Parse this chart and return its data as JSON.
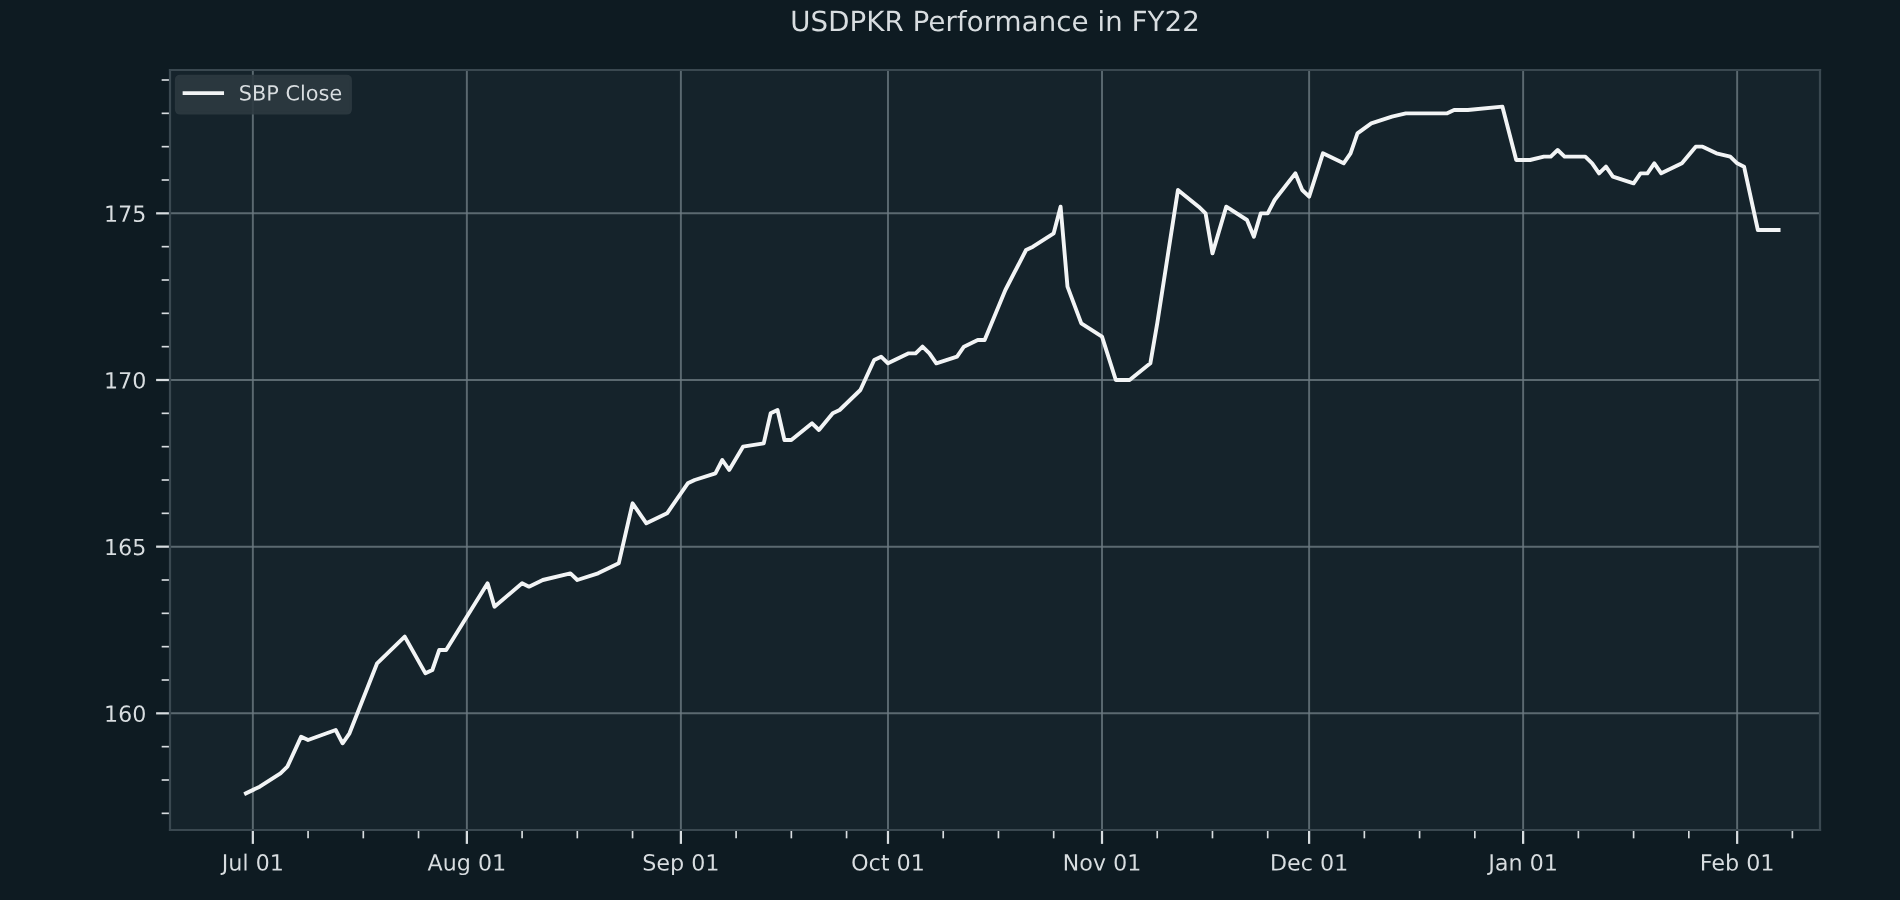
{
  "chart_data": {
    "type": "line",
    "title": "USDPKR Performance in FY22",
    "x": [
      "2021-06-30",
      "2021-07-02",
      "2021-07-05",
      "2021-07-06",
      "2021-07-08",
      "2021-07-09",
      "2021-07-13",
      "2021-07-14",
      "2021-07-15",
      "2021-07-19",
      "2021-07-23",
      "2021-07-26",
      "2021-07-27",
      "2021-07-28",
      "2021-07-29",
      "2021-08-04",
      "2021-08-05",
      "2021-08-09",
      "2021-08-10",
      "2021-08-12",
      "2021-08-16",
      "2021-08-17",
      "2021-08-20",
      "2021-08-23",
      "2021-08-25",
      "2021-08-27",
      "2021-08-30",
      "2021-09-02",
      "2021-09-03",
      "2021-09-06",
      "2021-09-07",
      "2021-09-08",
      "2021-09-10",
      "2021-09-13",
      "2021-09-14",
      "2021-09-15",
      "2021-09-16",
      "2021-09-17",
      "2021-09-20",
      "2021-09-21",
      "2021-09-23",
      "2021-09-24",
      "2021-09-27",
      "2021-09-29",
      "2021-09-30",
      "2021-10-01",
      "2021-10-04",
      "2021-10-05",
      "2021-10-06",
      "2021-10-07",
      "2021-10-08",
      "2021-10-11",
      "2021-10-12",
      "2021-10-14",
      "2021-10-15",
      "2021-10-18",
      "2021-10-21",
      "2021-10-22",
      "2021-10-25",
      "2021-10-26",
      "2021-10-27",
      "2021-10-29",
      "2021-11-01",
      "2021-11-03",
      "2021-11-05",
      "2021-11-08",
      "2021-11-09",
      "2021-11-12",
      "2021-11-15",
      "2021-11-16",
      "2021-11-17",
      "2021-11-19",
      "2021-11-22",
      "2021-11-23",
      "2021-11-24",
      "2021-11-25",
      "2021-11-26",
      "2021-11-29",
      "2021-11-30",
      "2021-12-01",
      "2021-12-03",
      "2021-12-06",
      "2021-12-07",
      "2021-12-08",
      "2021-12-10",
      "2021-12-13",
      "2021-12-15",
      "2021-12-17",
      "2021-12-21",
      "2021-12-22",
      "2021-12-24",
      "2021-12-29",
      "2021-12-31",
      "2022-01-02",
      "2022-01-04",
      "2022-01-05",
      "2022-01-06",
      "2022-01-07",
      "2022-01-10",
      "2022-01-11",
      "2022-01-12",
      "2022-01-13",
      "2022-01-14",
      "2022-01-17",
      "2022-01-18",
      "2022-01-19",
      "2022-01-20",
      "2022-01-21",
      "2022-01-24",
      "2022-01-26",
      "2022-01-27",
      "2022-01-29",
      "2022-01-31",
      "2022-02-01",
      "2022-02-02",
      "2022-02-04",
      "2022-02-07"
    ],
    "series": [
      {
        "name": "SBP Close",
        "color": "#f2f4f5",
        "values": [
          157.6,
          157.8,
          158.2,
          158.4,
          159.3,
          159.2,
          159.5,
          159.1,
          159.4,
          161.5,
          162.3,
          161.2,
          161.3,
          161.9,
          161.9,
          163.9,
          163.2,
          163.9,
          163.8,
          164.0,
          164.2,
          164.0,
          164.2,
          164.5,
          166.3,
          165.7,
          166.0,
          166.9,
          167.0,
          167.2,
          167.6,
          167.3,
          168.0,
          168.1,
          169.0,
          169.1,
          168.2,
          168.2,
          168.7,
          168.5,
          169.0,
          169.1,
          169.7,
          170.6,
          170.7,
          170.5,
          170.8,
          170.8,
          171.0,
          170.8,
          170.5,
          170.7,
          171.0,
          171.2,
          171.2,
          172.7,
          173.9,
          174.0,
          174.4,
          175.2,
          172.8,
          171.7,
          171.3,
          170.0,
          170.0,
          170.5,
          171.7,
          175.7,
          175.2,
          175.0,
          173.8,
          175.2,
          174.8,
          174.3,
          175.0,
          175.0,
          175.4,
          176.2,
          175.7,
          175.5,
          176.8,
          176.5,
          176.8,
          177.4,
          177.7,
          177.9,
          178.0,
          178.0,
          178.0,
          178.1,
          178.1,
          178.2,
          176.6,
          176.6,
          176.7,
          176.7,
          176.9,
          176.7,
          176.7,
          176.5,
          176.2,
          176.4,
          176.1,
          175.9,
          176.2,
          176.2,
          176.5,
          176.2,
          176.5,
          177.0,
          177.0,
          176.8,
          176.7,
          176.5,
          176.4,
          174.5,
          174.5
        ]
      }
    ],
    "xlim": [
      "2021-06-19",
      "2022-02-13"
    ],
    "xticks": [
      {
        "value": "2021-07-01",
        "label": "Jul 01"
      },
      {
        "value": "2021-07-09",
        "label": null
      },
      {
        "value": "2021-07-17",
        "label": null
      },
      {
        "value": "2021-07-25",
        "label": null
      },
      {
        "value": "2021-08-01",
        "label": "Aug 01"
      },
      {
        "value": "2021-08-09",
        "label": null
      },
      {
        "value": "2021-08-17",
        "label": null
      },
      {
        "value": "2021-08-25",
        "label": null
      },
      {
        "value": "2021-09-01",
        "label": "Sep 01"
      },
      {
        "value": "2021-09-09",
        "label": null
      },
      {
        "value": "2021-09-17",
        "label": null
      },
      {
        "value": "2021-09-25",
        "label": null
      },
      {
        "value": "2021-10-01",
        "label": "Oct 01"
      },
      {
        "value": "2021-10-09",
        "label": null
      },
      {
        "value": "2021-10-17",
        "label": null
      },
      {
        "value": "2021-10-25",
        "label": null
      },
      {
        "value": "2021-11-01",
        "label": "Nov 01"
      },
      {
        "value": "2021-11-09",
        "label": null
      },
      {
        "value": "2021-11-17",
        "label": null
      },
      {
        "value": "2021-11-25",
        "label": null
      },
      {
        "value": "2021-12-01",
        "label": "Dec 01"
      },
      {
        "value": "2021-12-09",
        "label": null
      },
      {
        "value": "2021-12-17",
        "label": null
      },
      {
        "value": "2021-12-25",
        "label": null
      },
      {
        "value": "2022-01-01",
        "label": "Jan 01"
      },
      {
        "value": "2022-01-09",
        "label": null
      },
      {
        "value": "2022-01-17",
        "label": null
      },
      {
        "value": "2022-01-25",
        "label": null
      },
      {
        "value": "2022-02-01",
        "label": "Feb 01"
      },
      {
        "value": "2022-02-09",
        "label": null
      }
    ],
    "ylim": [
      156.5,
      179.3
    ],
    "yticks": [
      {
        "value": 157,
        "label": null
      },
      {
        "value": 158,
        "label": null
      },
      {
        "value": 159,
        "label": null
      },
      160,
      {
        "value": 161,
        "label": null
      },
      {
        "value": 162,
        "label": null
      },
      {
        "value": 163,
        "label": null
      },
      {
        "value": 164,
        "label": null
      },
      165,
      {
        "value": 166,
        "label": null
      },
      {
        "value": 167,
        "label": null
      },
      {
        "value": 168,
        "label": null
      },
      {
        "value": 169,
        "label": null
      },
      170,
      {
        "value": 171,
        "label": null
      },
      {
        "value": 172,
        "label": null
      },
      {
        "value": 173,
        "label": null
      },
      {
        "value": 174,
        "label": null
      },
      175,
      {
        "value": 176,
        "label": null
      },
      {
        "value": 177,
        "label": null
      },
      {
        "value": 178,
        "label": null
      },
      {
        "value": 179,
        "label": null
      }
    ],
    "grid": true,
    "legend": "top left",
    "line_style": "solid",
    "marker": "none"
  }
}
